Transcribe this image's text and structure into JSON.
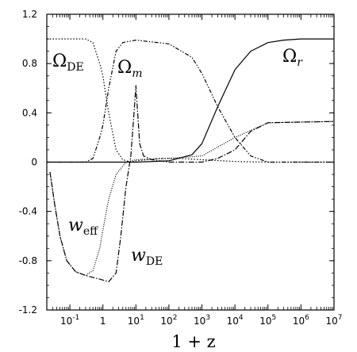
{
  "chart_data": {
    "type": "line",
    "title": "",
    "xlabel": "1 + z",
    "ylabel": "",
    "xscale": "log",
    "xlim": [
      0.02,
      10000000
    ],
    "ylim": [
      -1.2,
      1.2
    ],
    "grid": false,
    "x_ticks": [
      {
        "base": "10",
        "exp": "-1",
        "value": 0.1
      },
      {
        "base": "1",
        "exp": "",
        "value": 1
      },
      {
        "base": "10",
        "exp": "1",
        "value": 10
      },
      {
        "base": "10",
        "exp": "2",
        "value": 100
      },
      {
        "base": "10",
        "exp": "3",
        "value": 1000
      },
      {
        "base": "10",
        "exp": "4",
        "value": 10000
      },
      {
        "base": "10",
        "exp": "5",
        "value": 100000
      },
      {
        "base": "10",
        "exp": "6",
        "value": 1000000
      },
      {
        "base": "10",
        "exp": "7",
        "value": 10000000
      }
    ],
    "y_ticks": [
      "1.2",
      "0.8",
      "0.4",
      "0",
      "-0.4",
      "-0.8",
      "-1.2"
    ],
    "series": [
      {
        "key": "omega_de",
        "label_main": "Ω",
        "label_sub": "DE",
        "dash": "1.5,2.2",
        "points": [
          [
            0.02,
            1.0
          ],
          [
            0.3,
            1.0
          ],
          [
            0.5,
            0.97
          ],
          [
            0.8,
            0.8
          ],
          [
            1.0,
            0.7
          ],
          [
            1.5,
            0.4
          ],
          [
            2.5,
            0.1
          ],
          [
            4,
            0.02
          ],
          [
            7,
            0.0
          ],
          [
            10,
            0.01
          ],
          [
            50,
            0.03
          ],
          [
            200,
            0.03
          ],
          [
            1000,
            0.02
          ],
          [
            10000,
            0.005
          ],
          [
            100000,
            0.0
          ],
          [
            10000000,
            0.0
          ]
        ]
      },
      {
        "key": "omega_m",
        "label_main": "Ω",
        "label_sub": "m",
        "dash": "5,2,1.5,2,1.5,2",
        "points": [
          [
            0.02,
            0.0
          ],
          [
            0.3,
            0.0
          ],
          [
            0.5,
            0.03
          ],
          [
            0.8,
            0.2
          ],
          [
            1.0,
            0.3
          ],
          [
            1.5,
            0.6
          ],
          [
            2.5,
            0.9
          ],
          [
            4,
            0.97
          ],
          [
            10,
            0.99
          ],
          [
            100,
            0.96
          ],
          [
            500,
            0.85
          ],
          [
            1000,
            0.72
          ],
          [
            3000,
            0.45
          ],
          [
            10000,
            0.2
          ],
          [
            30000,
            0.05
          ],
          [
            100000,
            0.0
          ],
          [
            10000000,
            0.0
          ]
        ]
      },
      {
        "key": "omega_r",
        "label_main": "Ω",
        "label_sub": "r",
        "dash": "",
        "points": [
          [
            0.02,
            0.0
          ],
          [
            10,
            0.0
          ],
          [
            100,
            0.01
          ],
          [
            500,
            0.06
          ],
          [
            1000,
            0.15
          ],
          [
            3000,
            0.45
          ],
          [
            10000,
            0.75
          ],
          [
            30000,
            0.9
          ],
          [
            100000,
            0.97
          ],
          [
            300000,
            0.99
          ],
          [
            1000000,
            1.0
          ],
          [
            10000000,
            1.0
          ]
        ]
      },
      {
        "key": "w_eff",
        "label_main": "w",
        "label_sub": "eff",
        "dash": "1,1.6",
        "points": [
          [
            0.025,
            -0.08
          ],
          [
            0.035,
            -0.35
          ],
          [
            0.05,
            -0.6
          ],
          [
            0.08,
            -0.8
          ],
          [
            0.15,
            -0.89
          ],
          [
            0.3,
            -0.92
          ],
          [
            0.5,
            -0.88
          ],
          [
            0.8,
            -0.7
          ],
          [
            1.0,
            -0.55
          ],
          [
            1.5,
            -0.3
          ],
          [
            2.5,
            -0.1
          ],
          [
            5,
            0.0
          ],
          [
            10,
            0.02
          ],
          [
            100,
            0.03
          ],
          [
            1000,
            0.05
          ],
          [
            10000,
            0.2
          ],
          [
            100000,
            0.32
          ],
          [
            10000000,
            0.33
          ]
        ]
      },
      {
        "key": "w_de",
        "label_main": "w",
        "label_sub": "DE",
        "dash": "7,2,1.5,2",
        "points": [
          [
            0.025,
            -0.08
          ],
          [
            0.035,
            -0.35
          ],
          [
            0.05,
            -0.6
          ],
          [
            0.08,
            -0.8
          ],
          [
            0.15,
            -0.89
          ],
          [
            0.3,
            -0.92
          ],
          [
            0.8,
            -0.95
          ],
          [
            1.5,
            -0.97
          ],
          [
            2.5,
            -0.9
          ],
          [
            3.5,
            -0.6
          ],
          [
            5,
            -0.2
          ],
          [
            7,
            0.05
          ],
          [
            8.5,
            0.35
          ],
          [
            10,
            0.62
          ],
          [
            11,
            0.45
          ],
          [
            13,
            0.15
          ],
          [
            17,
            0.05
          ],
          [
            30,
            0.02
          ],
          [
            100,
            0.0
          ],
          [
            1000,
            0.0
          ],
          [
            3000,
            0.03
          ],
          [
            10000,
            0.1
          ],
          [
            30000,
            0.25
          ],
          [
            100000,
            0.32
          ],
          [
            10000000,
            0.33
          ]
        ]
      }
    ]
  }
}
